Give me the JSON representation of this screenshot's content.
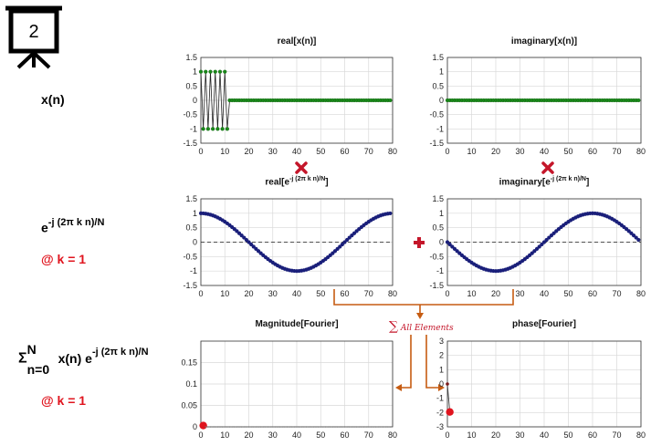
{
  "slide_number": "2",
  "labels": {
    "xn": "x(n)",
    "kernel": {
      "base": "e",
      "exp": "-j (2π k n)/N"
    },
    "at_k1": "@ k = 1",
    "sum": {
      "sigma": "Σ",
      "upper": "N",
      "lower": "n=0",
      "body": "x(n) e",
      "exp": "-j (2π k n)/N"
    },
    "at_k1_b": "@ k = 1",
    "sum_all": "All Elements",
    "sum_symbol": "∑"
  },
  "plot_titles": {
    "real_x": "real[x(n)]",
    "imag_x": "imaginary[x(n)]",
    "real_e": {
      "base": "real[e",
      "exp": "-j (2π k n)/N",
      "end": "]"
    },
    "imag_e": {
      "base": "imaginary[e",
      "exp": "-j (2π k n)/N",
      "end": "]"
    },
    "mag": "Magnitude[Fourier]",
    "phase": "phase[Fourier]"
  },
  "colors": {
    "green_marker": "#1a8a1a",
    "navy_marker": "#1a1f7a",
    "orange_arrow": "#c65c12",
    "red": "#e0141e",
    "grid": "#d8d8d8"
  },
  "operators": {
    "multiply_icon": "multiply-icon",
    "plus_icon": "plus-icon"
  },
  "chart_data": [
    {
      "id": "real_x",
      "type": "line",
      "title": "real[x(n)]",
      "xlim": [
        0,
        80
      ],
      "ylim": [
        -1.5,
        1.5
      ],
      "xticks": [
        0,
        10,
        20,
        30,
        40,
        50,
        60,
        70,
        80
      ],
      "yticks": [
        1.5,
        1,
        0.5,
        0,
        -0.5,
        -1,
        -1.5
      ],
      "x_range": [
        0,
        79
      ],
      "values": [
        1,
        -1,
        1,
        -1,
        1,
        -1,
        1,
        -1,
        1,
        -1,
        1,
        -1,
        0,
        0,
        0,
        0,
        0,
        0,
        0,
        0,
        0,
        0,
        0,
        0,
        0,
        0,
        0,
        0,
        0,
        0,
        0,
        0,
        0,
        0,
        0,
        0,
        0,
        0,
        0,
        0,
        0,
        0,
        0,
        0,
        0,
        0,
        0,
        0,
        0,
        0,
        0,
        0,
        0,
        0,
        0,
        0,
        0,
        0,
        0,
        0,
        0,
        0,
        0,
        0,
        0,
        0,
        0,
        0,
        0,
        0,
        0,
        0,
        0,
        0,
        0,
        0,
        0,
        0,
        0,
        0
      ]
    },
    {
      "id": "imag_x",
      "type": "line",
      "title": "imaginary[x(n)]",
      "xlim": [
        0,
        80
      ],
      "ylim": [
        -1.5,
        1.5
      ],
      "xticks": [
        0,
        10,
        20,
        30,
        40,
        50,
        60,
        70,
        80
      ],
      "yticks": [
        1.5,
        1,
        0.5,
        0,
        -0.5,
        -1,
        -1.5
      ],
      "x_range": [
        0,
        79
      ],
      "values": "zeros"
    },
    {
      "id": "real_e",
      "type": "line",
      "title": "real[e^-j (2π k n)/N]",
      "xlim": [
        0,
        80
      ],
      "ylim": [
        -1.5,
        1.5
      ],
      "xticks": [
        0,
        10,
        20,
        30,
        40,
        50,
        60,
        70,
        80
      ],
      "yticks": [
        1.5,
        1,
        0.5,
        0,
        -0.5,
        -1,
        -1.5
      ],
      "x_range": [
        0,
        79
      ],
      "function": "cos(2*pi*n/80)"
    },
    {
      "id": "imag_e",
      "type": "line",
      "title": "imaginary[e^-j (2π k n)/N]",
      "xlim": [
        0,
        80
      ],
      "ylim": [
        -1.5,
        1.5
      ],
      "xticks": [
        0,
        10,
        20,
        30,
        40,
        50,
        60,
        70,
        80
      ],
      "yticks": [
        1.5,
        1,
        0.5,
        0,
        -0.5,
        -1,
        -1.5
      ],
      "x_range": [
        0,
        79
      ],
      "function": "-sin(2*pi*n/80)"
    },
    {
      "id": "mag",
      "type": "scatter",
      "title": "Magnitude[Fourier]",
      "xlim": [
        0,
        80
      ],
      "ylim": [
        0,
        0.2
      ],
      "xticks": [
        0,
        10,
        20,
        30,
        40,
        50,
        60,
        70,
        80
      ],
      "yticks": [
        0.15,
        0.1,
        0.05,
        0
      ],
      "points": [
        {
          "x": 1,
          "y": 0.003
        }
      ]
    },
    {
      "id": "phase",
      "type": "scatter",
      "title": "phase[Fourier]",
      "xlim": [
        0,
        80
      ],
      "ylim": [
        -3,
        3
      ],
      "xticks": [
        0,
        10,
        20,
        30,
        40,
        50,
        60,
        70,
        80
      ],
      "yticks": [
        3,
        2,
        1,
        0,
        -1,
        -2,
        -3
      ],
      "points": [
        {
          "x": 0,
          "y": 0
        },
        {
          "x": 1,
          "y": -1.96
        }
      ]
    }
  ]
}
